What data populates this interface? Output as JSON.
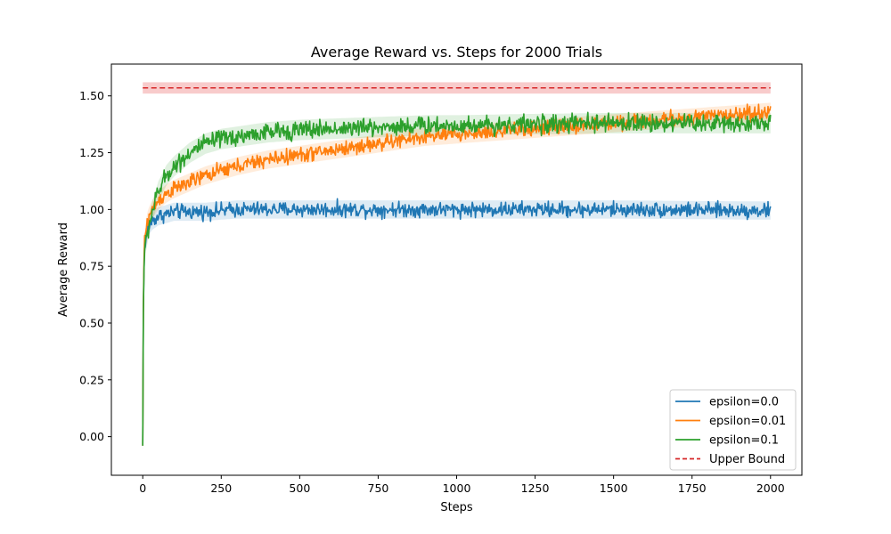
{
  "chart_data": {
    "type": "line",
    "title": "Average Reward vs. Steps for 2000 Trials",
    "xlabel": "Steps",
    "ylabel": "Average Reward",
    "xlim": [
      -100,
      2100
    ],
    "ylim": [
      -0.17,
      1.64
    ],
    "x_ticks": [
      0,
      250,
      500,
      750,
      1000,
      1250,
      1500,
      1750,
      2000
    ],
    "y_ticks": [
      0.0,
      0.25,
      0.5,
      0.75,
      1.0,
      1.25,
      1.5
    ],
    "x_tick_labels": [
      "0",
      "250",
      "500",
      "750",
      "1000",
      "1250",
      "1500",
      "1750",
      "2000"
    ],
    "y_tick_labels": [
      "0.00",
      "0.25",
      "0.50",
      "0.75",
      "1.00",
      "1.25",
      "1.50"
    ],
    "grid": false,
    "legend_position": "lower-right",
    "x_range": [
      0,
      2000
    ],
    "series": [
      {
        "name": "epsilon=0.0",
        "color": "#1f77b4",
        "linestyle": "solid",
        "noise": 0.025,
        "band": 0.04,
        "x": [
          0,
          1,
          3,
          5,
          10,
          15,
          20,
          30,
          50,
          75,
          100,
          150,
          200,
          300,
          400,
          500,
          700,
          1000,
          1500,
          2000
        ],
        "values": [
          -0.04,
          0.4,
          0.72,
          0.8,
          0.87,
          0.91,
          0.93,
          0.95,
          0.97,
          0.98,
          0.99,
          0.99,
          0.99,
          1.0,
          1.0,
          1.0,
          1.0,
          1.0,
          1.0,
          0.995
        ]
      },
      {
        "name": "epsilon=0.01",
        "color": "#ff7f0e",
        "linestyle": "solid",
        "noise": 0.025,
        "band": 0.04,
        "x": [
          0,
          1,
          3,
          5,
          10,
          15,
          20,
          30,
          50,
          75,
          100,
          150,
          200,
          250,
          300,
          400,
          500,
          600,
          700,
          800,
          900,
          1000,
          1100,
          1200,
          1300,
          1400,
          1500,
          1600,
          1700,
          1800,
          1900,
          2000
        ],
        "values": [
          -0.04,
          0.4,
          0.74,
          0.84,
          0.91,
          0.95,
          0.97,
          1.0,
          1.04,
          1.07,
          1.09,
          1.12,
          1.15,
          1.17,
          1.19,
          1.22,
          1.24,
          1.26,
          1.28,
          1.3,
          1.32,
          1.33,
          1.34,
          1.35,
          1.36,
          1.37,
          1.38,
          1.39,
          1.4,
          1.41,
          1.42,
          1.43
        ]
      },
      {
        "name": "epsilon=0.1",
        "color": "#2ca02c",
        "linestyle": "solid",
        "noise": 0.03,
        "band": 0.045,
        "x": [
          0,
          1,
          3,
          5,
          10,
          20,
          30,
          50,
          75,
          100,
          150,
          200,
          250,
          300,
          400,
          500,
          600,
          700,
          800,
          900,
          1000,
          1200,
          1500,
          1800,
          2000
        ],
        "values": [
          -0.04,
          0.4,
          0.7,
          0.79,
          0.86,
          0.93,
          0.99,
          1.08,
          1.15,
          1.19,
          1.25,
          1.29,
          1.31,
          1.32,
          1.34,
          1.35,
          1.355,
          1.36,
          1.365,
          1.37,
          1.37,
          1.375,
          1.38,
          1.38,
          1.38
        ]
      },
      {
        "name": "Upper Bound",
        "color": "#d62728",
        "linestyle": "dashed",
        "band_color": "#f2a0a1",
        "band": 0.025,
        "x": [
          0,
          2000
        ],
        "values": [
          1.535,
          1.535
        ]
      }
    ]
  }
}
